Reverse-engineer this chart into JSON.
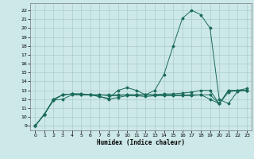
{
  "title": "",
  "xlabel": "Humidex (Indice chaleur)",
  "xlim": [
    -0.5,
    23.5
  ],
  "ylim": [
    8.5,
    22.8
  ],
  "xticks": [
    0,
    1,
    2,
    3,
    4,
    5,
    6,
    7,
    8,
    9,
    10,
    11,
    12,
    13,
    14,
    15,
    16,
    17,
    18,
    19,
    20,
    21,
    22,
    23
  ],
  "yticks": [
    9,
    10,
    11,
    12,
    13,
    14,
    15,
    16,
    17,
    18,
    19,
    20,
    21,
    22
  ],
  "bg_color": "#cde8e8",
  "line_color": "#1a6b5a",
  "grid_color": "#aacccc",
  "line_main": {
    "x": [
      0,
      1,
      2,
      3,
      4,
      5,
      6,
      7,
      8,
      9,
      10,
      11,
      12,
      13,
      14,
      15,
      16,
      17,
      18,
      19,
      20,
      21,
      22,
      23
    ],
    "y": [
      9.0,
      10.3,
      11.9,
      12.5,
      12.6,
      12.6,
      12.5,
      12.3,
      12.1,
      13.0,
      13.3,
      13.0,
      12.5,
      13.0,
      14.8,
      18.0,
      21.1,
      22.0,
      21.5,
      20.0,
      12.0,
      11.5,
      12.9,
      13.0
    ]
  },
  "line2": {
    "x": [
      0,
      1,
      2,
      3,
      4,
      5,
      6,
      7,
      8,
      9,
      10,
      11,
      12,
      13,
      14,
      15,
      16,
      17,
      18,
      19,
      20,
      21,
      22,
      23
    ],
    "y": [
      9.0,
      10.3,
      12.0,
      12.5,
      12.6,
      12.5,
      12.5,
      12.5,
      12.4,
      12.4,
      12.5,
      12.5,
      12.5,
      12.5,
      12.6,
      12.6,
      12.7,
      12.8,
      13.0,
      13.0,
      11.5,
      13.0,
      13.0,
      13.2
    ]
  },
  "line3": {
    "x": [
      0,
      1,
      2,
      3,
      4,
      5,
      6,
      7,
      8,
      9,
      10,
      11,
      12,
      13,
      14,
      15,
      16,
      17,
      18,
      19,
      20,
      21,
      22,
      23
    ],
    "y": [
      9.0,
      10.3,
      12.0,
      12.5,
      12.6,
      12.6,
      12.5,
      12.3,
      12.0,
      12.2,
      12.4,
      12.4,
      12.3,
      12.4,
      12.4,
      12.4,
      12.4,
      12.4,
      12.5,
      12.0,
      11.5,
      12.8,
      13.0,
      13.0
    ]
  },
  "line4": {
    "x": [
      0,
      1,
      2,
      3,
      4,
      5,
      6,
      7,
      8,
      9,
      10,
      11,
      12,
      13,
      14,
      15,
      16,
      17,
      18,
      19,
      20,
      21,
      22,
      23
    ],
    "y": [
      9.0,
      10.3,
      11.9,
      12.0,
      12.5,
      12.5,
      12.5,
      12.5,
      12.5,
      12.5,
      12.5,
      12.5,
      12.5,
      12.5,
      12.5,
      12.5,
      12.5,
      12.5,
      12.5,
      12.5,
      11.5,
      13.0,
      13.0,
      13.0
    ]
  }
}
